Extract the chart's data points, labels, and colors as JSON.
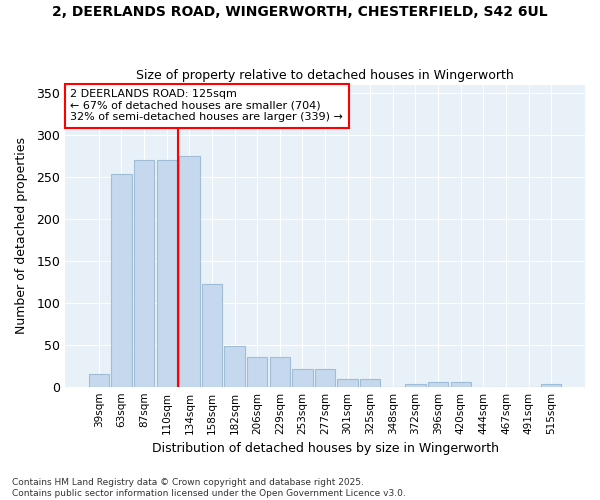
{
  "title_line1": "2, DEERLANDS ROAD, WINGERWORTH, CHESTERFIELD, S42 6UL",
  "title_line2": "Size of property relative to detached houses in Wingerworth",
  "xlabel": "Distribution of detached houses by size in Wingerworth",
  "ylabel": "Number of detached properties",
  "categories": [
    "39sqm",
    "63sqm",
    "87sqm",
    "110sqm",
    "134sqm",
    "158sqm",
    "182sqm",
    "206sqm",
    "229sqm",
    "253sqm",
    "277sqm",
    "301sqm",
    "325sqm",
    "348sqm",
    "372sqm",
    "396sqm",
    "420sqm",
    "444sqm",
    "467sqm",
    "491sqm",
    "515sqm"
  ],
  "values": [
    15,
    253,
    270,
    270,
    275,
    122,
    48,
    35,
    35,
    21,
    21,
    9,
    9,
    0,
    3,
    5,
    5,
    0,
    0,
    0,
    3
  ],
  "bar_color": "#c5d8ee",
  "bar_edge_color": "#a0bdd8",
  "background_color": "#ffffff",
  "plot_bg_color": "#e8f0f8",
  "grid_color": "#ffffff",
  "red_line_index": 4,
  "annotation_text": "2 DEERLANDS ROAD: 125sqm\n← 67% of detached houses are smaller (704)\n32% of semi-detached houses are larger (339) →",
  "annotation_box_color": "white",
  "annotation_box_edge": "red",
  "ylim": [
    0,
    360
  ],
  "yticks": [
    0,
    50,
    100,
    150,
    200,
    250,
    300,
    350
  ],
  "footer_line1": "Contains HM Land Registry data © Crown copyright and database right 2025.",
  "footer_line2": "Contains public sector information licensed under the Open Government Licence v3.0."
}
